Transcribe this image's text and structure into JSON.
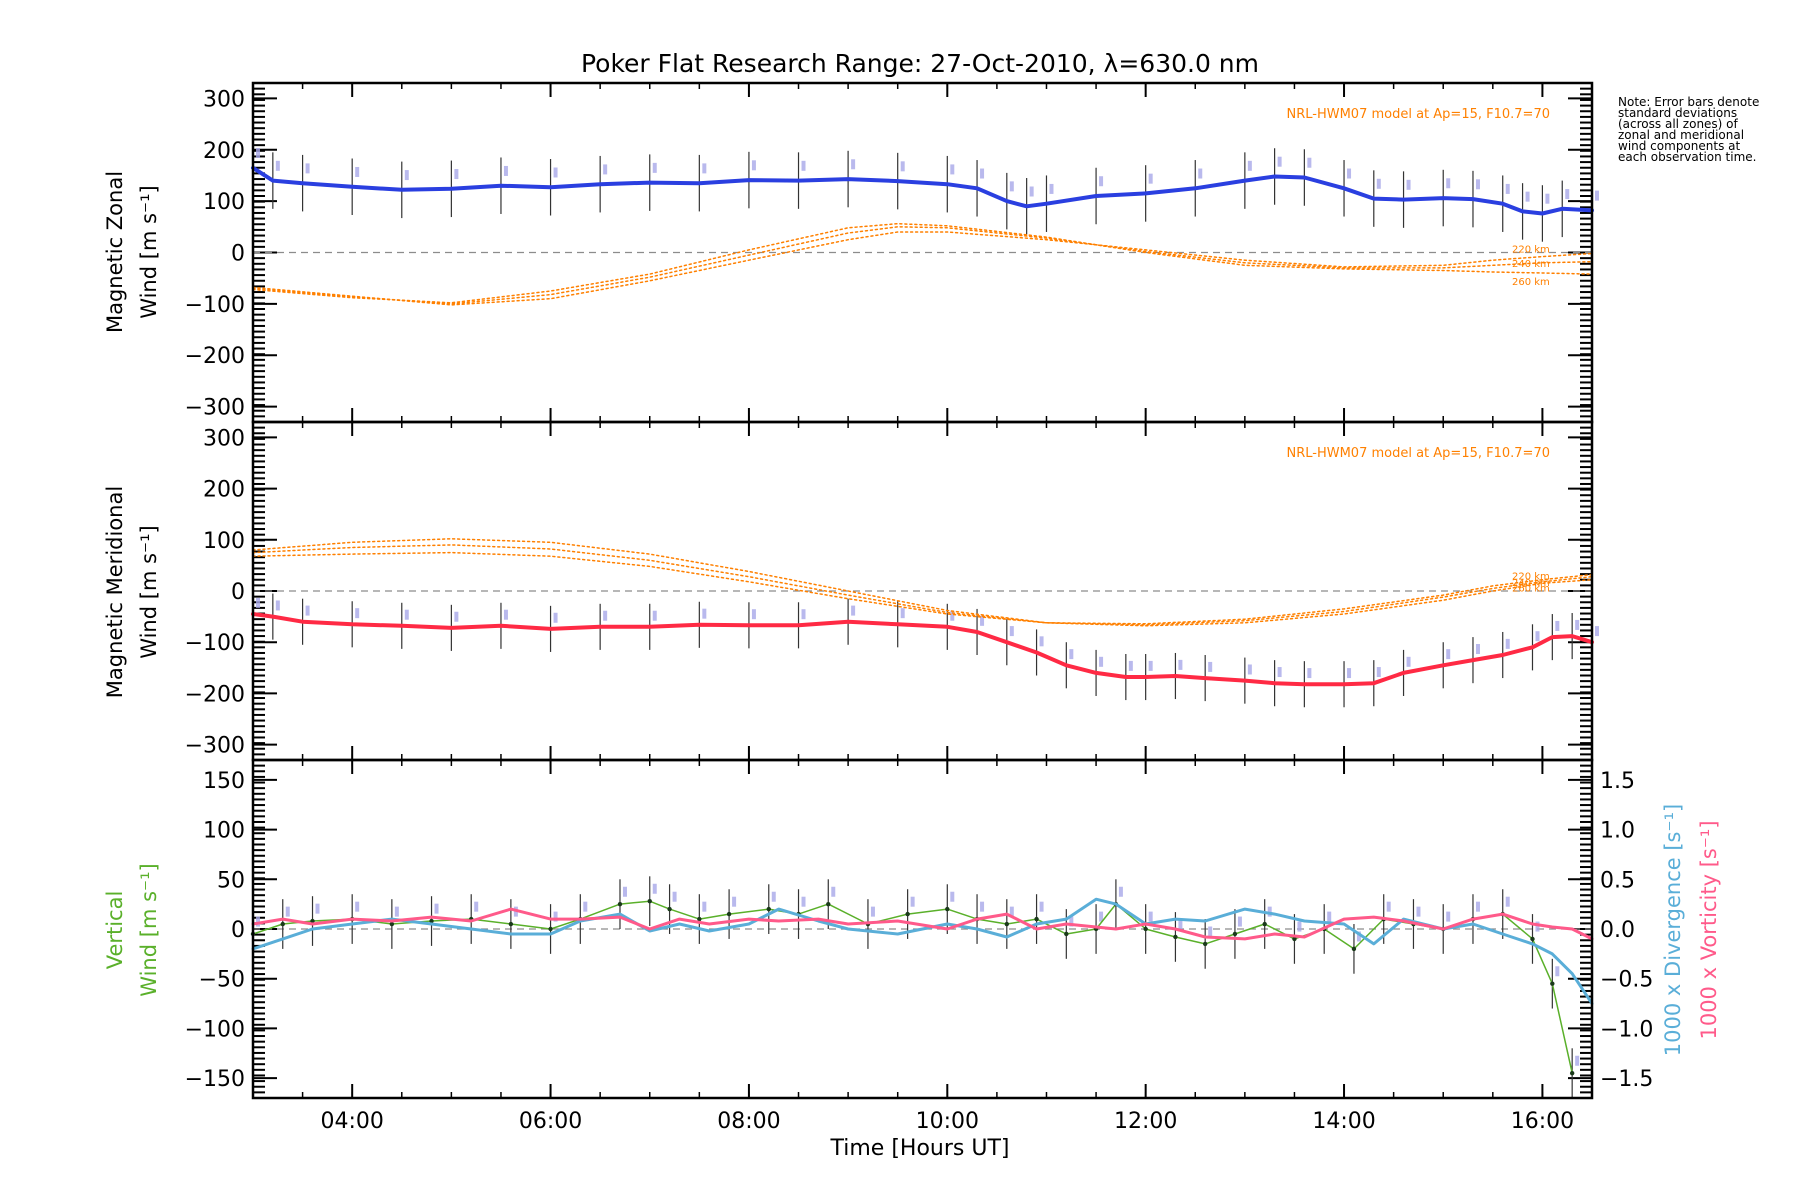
{
  "title": "Poker Flat Research Range: 27-Oct-2010, λ=630.0 nm",
  "note": "Note: Error bars denote standard deviations (across all zones) of zonal and meridional wind components at each observation time.",
  "xlabel": "Time [Hours UT]",
  "x_ticks": [
    "04:00",
    "06:00",
    "08:00",
    "10:00",
    "12:00",
    "14:00",
    "16:00"
  ],
  "colors": {
    "zonal": "#2a3fe0",
    "meridional": "#ff2a44",
    "vertical": "#5ab02a",
    "divergence": "#5aaed8",
    "vorticity": "#ff5a8a",
    "model": "#ff8000",
    "error_bar": "#333333",
    "zone_markers": "#a8a8e8"
  },
  "chart_data": [
    {
      "type": "line",
      "panel": "zonal",
      "ylabel_line1": "Magnetic Zonal",
      "ylabel_line2": "Wind [m s⁻¹]",
      "ylim": [
        -330,
        330
      ],
      "xlim": [
        3.0,
        16.5
      ],
      "y_ticks": [
        "−300",
        "−200",
        "−100",
        "0",
        "100",
        "200",
        "300"
      ],
      "y_tick_values": [
        -300,
        -200,
        -100,
        0,
        100,
        200,
        300
      ],
      "model_label": "NRL-HWM07 model at Ap=15, F10.7=70",
      "model_altitudes": [
        "220 km",
        "240 km",
        "260 km"
      ],
      "series": [
        {
          "name": "Magnetic Zonal Wind",
          "x": [
            3.0,
            3.2,
            3.5,
            4.0,
            4.5,
            5.0,
            5.5,
            6.0,
            6.5,
            7.0,
            7.5,
            8.0,
            8.5,
            9.0,
            9.5,
            10.0,
            10.3,
            10.6,
            10.8,
            11.0,
            11.5,
            12.0,
            12.5,
            13.0,
            13.3,
            13.6,
            14.0,
            14.3,
            14.6,
            15.0,
            15.3,
            15.6,
            15.8,
            16.0,
            16.2,
            16.5
          ],
          "values": [
            165,
            140,
            135,
            128,
            122,
            124,
            130,
            127,
            133,
            136,
            135,
            141,
            140,
            143,
            139,
            133,
            125,
            100,
            90,
            95,
            110,
            115,
            125,
            140,
            148,
            146,
            125,
            105,
            103,
            106,
            104,
            95,
            80,
            76,
            85,
            82
          ],
          "error": 55
        },
        {
          "name": "Model 220 km",
          "x": [
            3.0,
            4.0,
            5.0,
            6.0,
            7.0,
            8.0,
            9.0,
            9.5,
            10.0,
            11.0,
            12.0,
            13.0,
            14.0,
            15.0,
            15.5,
            16.0,
            16.5
          ],
          "values": [
            -68,
            -85,
            -102,
            -90,
            -55,
            -15,
            25,
            40,
            40,
            25,
            5,
            -15,
            -28,
            -25,
            -15,
            -8,
            -2
          ]
        },
        {
          "name": "Model 240 km",
          "x": [
            3.0,
            4.0,
            5.0,
            6.0,
            7.0,
            8.0,
            9.0,
            9.5,
            10.0,
            11.0,
            12.0,
            13.0,
            14.0,
            15.0,
            15.5,
            16.0,
            16.5
          ],
          "values": [
            -70,
            -86,
            -100,
            -82,
            -48,
            -5,
            38,
            50,
            48,
            28,
            2,
            -20,
            -30,
            -30,
            -25,
            -20,
            -18
          ]
        },
        {
          "name": "Model 260 km",
          "x": [
            3.0,
            4.0,
            5.0,
            6.0,
            7.0,
            8.0,
            9.0,
            9.5,
            10.0,
            11.0,
            12.0,
            13.0,
            14.0,
            15.0,
            15.5,
            16.0,
            16.5
          ],
          "values": [
            -72,
            -88,
            -98,
            -75,
            -42,
            5,
            48,
            56,
            52,
            30,
            0,
            -25,
            -32,
            -35,
            -38,
            -40,
            -42
          ]
        }
      ]
    },
    {
      "type": "line",
      "panel": "meridional",
      "ylabel_line1": "Magnetic Meridional",
      "ylabel_line2": "Wind [m s⁻¹]",
      "ylim": [
        -330,
        330
      ],
      "xlim": [
        3.0,
        16.5
      ],
      "y_ticks": [
        "−300",
        "−200",
        "−100",
        "0",
        "100",
        "200",
        "300"
      ],
      "y_tick_values": [
        -300,
        -200,
        -100,
        0,
        100,
        200,
        300
      ],
      "model_label": "NRL-HWM07 model at Ap=15, F10.7=70",
      "model_altitudes": [
        "220 km",
        "240 km",
        "260 km"
      ],
      "series": [
        {
          "name": "Magnetic Meridional Wind",
          "x": [
            3.0,
            3.2,
            3.5,
            4.0,
            4.5,
            5.0,
            5.5,
            6.0,
            6.5,
            7.0,
            7.5,
            8.0,
            8.5,
            9.0,
            9.5,
            10.0,
            10.3,
            10.6,
            10.9,
            11.2,
            11.5,
            11.8,
            12.0,
            12.3,
            12.6,
            13.0,
            13.3,
            13.6,
            14.0,
            14.3,
            14.6,
            15.0,
            15.3,
            15.6,
            15.9,
            16.1,
            16.3,
            16.5
          ],
          "values": [
            -45,
            -50,
            -60,
            -65,
            -68,
            -72,
            -68,
            -74,
            -70,
            -70,
            -66,
            -67,
            -67,
            -60,
            -65,
            -70,
            -80,
            -100,
            -120,
            -145,
            -160,
            -168,
            -168,
            -166,
            -170,
            -175,
            -180,
            -182,
            -182,
            -180,
            -160,
            -145,
            -135,
            -125,
            -110,
            -90,
            -88,
            -100
          ],
          "error": 45
        },
        {
          "name": "Model 220 km",
          "x": [
            3.0,
            4.0,
            5.0,
            6.0,
            7.0,
            8.0,
            9.0,
            10.0,
            11.0,
            12.0,
            13.0,
            14.0,
            15.0,
            15.5,
            16.0,
            16.5
          ],
          "values": [
            80,
            95,
            102,
            95,
            72,
            38,
            0,
            -38,
            -62,
            -68,
            -62,
            -45,
            -18,
            0,
            15,
            22
          ]
        },
        {
          "name": "Model 240 km",
          "x": [
            3.0,
            4.0,
            5.0,
            6.0,
            7.0,
            8.0,
            9.0,
            10.0,
            11.0,
            12.0,
            13.0,
            14.0,
            15.0,
            15.5,
            16.0,
            16.5
          ],
          "values": [
            75,
            85,
            90,
            82,
            60,
            28,
            -8,
            -42,
            -62,
            -66,
            -58,
            -40,
            -12,
            5,
            18,
            28
          ]
        },
        {
          "name": "Model 260 km",
          "x": [
            3.0,
            4.0,
            5.0,
            6.0,
            7.0,
            8.0,
            9.0,
            10.0,
            11.0,
            12.0,
            13.0,
            14.0,
            15.0,
            15.5,
            16.0,
            16.5
          ],
          "values": [
            68,
            72,
            75,
            68,
            48,
            18,
            -15,
            -45,
            -62,
            -64,
            -55,
            -35,
            -8,
            10,
            22,
            32
          ]
        }
      ]
    },
    {
      "type": "line",
      "panel": "vertical",
      "ylabel_line1": "Vertical",
      "ylabel_line2": "Wind [m s⁻¹]",
      "ylim": [
        -170,
        170
      ],
      "xlim": [
        3.0,
        16.5
      ],
      "y_ticks": [
        "−150",
        "−100",
        "−50",
        "0",
        "50",
        "100",
        "150"
      ],
      "y_tick_values": [
        -150,
        -100,
        -50,
        0,
        50,
        100,
        150
      ],
      "y2_ticks": [
        "−1.5",
        "−1.0",
        "−0.5",
        "0.0",
        "0.5",
        "1.0",
        "1.5"
      ],
      "y2_tick_values": [
        -1.5,
        -1.0,
        -0.5,
        0.0,
        0.5,
        1.0,
        1.5
      ],
      "y2_label_divergence": "1000 x Divergence [s⁻¹]",
      "y2_label_vorticity": "1000 x Vorticity [s⁻¹]",
      "series": [
        {
          "name": "Vertical Wind",
          "x": [
            3.0,
            3.3,
            3.6,
            4.0,
            4.4,
            4.8,
            5.2,
            5.6,
            6.0,
            6.3,
            6.7,
            7.0,
            7.2,
            7.5,
            7.8,
            8.2,
            8.5,
            8.8,
            9.2,
            9.6,
            10.0,
            10.3,
            10.6,
            10.9,
            11.2,
            11.5,
            11.7,
            12.0,
            12.3,
            12.6,
            12.9,
            13.2,
            13.5,
            13.8,
            14.1,
            14.4,
            14.7,
            15.0,
            15.3,
            15.6,
            15.9,
            16.1,
            16.3
          ],
          "values": [
            -5,
            5,
            8,
            10,
            5,
            8,
            10,
            5,
            0,
            10,
            25,
            28,
            20,
            10,
            15,
            20,
            15,
            25,
            5,
            15,
            20,
            10,
            5,
            10,
            -5,
            0,
            25,
            0,
            -8,
            -15,
            -5,
            5,
            -10,
            0,
            -20,
            10,
            5,
            0,
            10,
            15,
            -10,
            -55,
            -145
          ],
          "error": 25
        },
        {
          "name": "Divergence",
          "axis": "y2",
          "x": [
            3.0,
            3.3,
            3.6,
            4.0,
            4.4,
            4.8,
            5.2,
            5.6,
            6.0,
            6.3,
            6.7,
            7.0,
            7.3,
            7.6,
            8.0,
            8.3,
            8.7,
            9.0,
            9.5,
            10.0,
            10.3,
            10.6,
            10.9,
            11.2,
            11.5,
            11.7,
            12.0,
            12.3,
            12.6,
            13.0,
            13.3,
            13.6,
            14.0,
            14.3,
            14.6,
            15.0,
            15.3,
            15.6,
            15.9,
            16.1,
            16.3,
            16.5
          ],
          "values": [
            -0.2,
            -0.1,
            0.0,
            0.05,
            0.1,
            0.05,
            0.0,
            -0.05,
            -0.05,
            0.08,
            0.15,
            -0.02,
            0.05,
            -0.02,
            0.05,
            0.2,
            0.08,
            0.0,
            -0.05,
            0.05,
            0.0,
            -0.08,
            0.05,
            0.1,
            0.3,
            0.25,
            0.05,
            0.1,
            0.08,
            0.2,
            0.15,
            0.08,
            0.05,
            -0.15,
            0.1,
            0.0,
            0.05,
            -0.05,
            -0.15,
            -0.25,
            -0.45,
            -0.75
          ]
        },
        {
          "name": "Vorticity",
          "axis": "y2",
          "x": [
            3.0,
            3.3,
            3.6,
            4.0,
            4.4,
            4.8,
            5.2,
            5.6,
            6.0,
            6.3,
            6.7,
            7.0,
            7.3,
            7.6,
            8.0,
            8.3,
            8.7,
            9.0,
            9.5,
            10.0,
            10.3,
            10.6,
            10.9,
            11.2,
            11.5,
            11.7,
            12.0,
            12.3,
            12.6,
            13.0,
            13.3,
            13.6,
            14.0,
            14.3,
            14.6,
            15.0,
            15.3,
            15.6,
            15.9,
            16.1,
            16.3,
            16.5
          ],
          "values": [
            0.05,
            0.1,
            0.05,
            0.1,
            0.08,
            0.12,
            0.08,
            0.2,
            0.1,
            0.1,
            0.12,
            0.0,
            0.1,
            0.05,
            0.1,
            0.08,
            0.1,
            0.05,
            0.08,
            0.0,
            0.1,
            0.15,
            0.0,
            0.05,
            0.02,
            0.0,
            0.05,
            0.0,
            -0.08,
            -0.1,
            -0.05,
            -0.08,
            0.1,
            0.12,
            0.08,
            0.0,
            0.1,
            0.15,
            0.05,
            0.02,
            0.0,
            -0.1
          ]
        }
      ]
    }
  ]
}
